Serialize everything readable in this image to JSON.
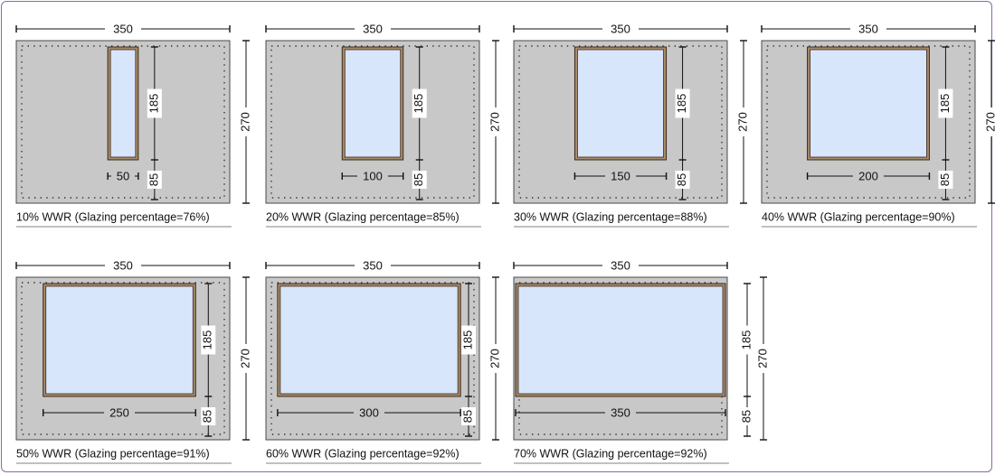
{
  "panels": [
    {
      "caption": "10% WWR (Glazing percentage=76%)",
      "wall_width": "350",
      "wall_height": "270",
      "window_height": "185",
      "sill_height": "85",
      "window_width": "50",
      "window_width_value": 50
    },
    {
      "caption": "20% WWR (Glazing percentage=85%)",
      "wall_width": "350",
      "wall_height": "270",
      "window_height": "185",
      "sill_height": "85",
      "window_width": "100",
      "window_width_value": 100
    },
    {
      "caption": "30% WWR (Glazing percentage=88%)",
      "wall_width": "350",
      "wall_height": "270",
      "window_height": "185",
      "sill_height": "85",
      "window_width": "150",
      "window_width_value": 150
    },
    {
      "caption": "40% WWR (Glazing percentage=90%)",
      "wall_width": "350",
      "wall_height": "270",
      "window_height": "185",
      "sill_height": "85",
      "window_width": "200",
      "window_width_value": 200
    },
    {
      "caption": "50% WWR (Glazing percentage=91%)",
      "wall_width": "350",
      "wall_height": "270",
      "window_height": "185",
      "sill_height": "85",
      "window_width": "250",
      "window_width_value": 250
    },
    {
      "caption": "60% WWR (Glazing percentage=92%)",
      "wall_width": "350",
      "wall_height": "270",
      "window_height": "185",
      "sill_height": "85",
      "window_width": "300",
      "window_width_value": 300
    },
    {
      "caption": "70% WWR (Glazing percentage=92%)",
      "wall_width": "350",
      "wall_height": "270",
      "window_height": "185",
      "sill_height": "85",
      "window_width": "350",
      "window_width_value": 350
    }
  ],
  "colors": {
    "wall": "#c8c8c8",
    "window_frame": "#a88a6c",
    "glass": "#d8e6fb",
    "border": "#8a6aa6"
  }
}
